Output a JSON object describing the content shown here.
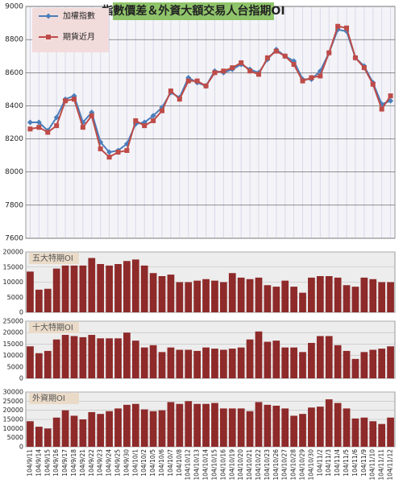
{
  "chart_data": [
    {
      "type": "line",
      "title": "指數價差＆外資大額交易人台指期OI",
      "ylim": [
        7600,
        9000
      ],
      "yticks": [
        7600,
        7800,
        8000,
        8200,
        8400,
        8600,
        8800,
        9000
      ],
      "grid": true,
      "legend": "top-left",
      "series": [
        {
          "name": "加權指數",
          "color": "#4a7ebb",
          "values": [
            8300,
            8300,
            8250,
            8330,
            8440,
            8460,
            8300,
            8360,
            8180,
            8120,
            8130,
            8170,
            8290,
            8300,
            8340,
            8390,
            8480,
            8450,
            8570,
            8540,
            8520,
            8610,
            8600,
            8620,
            8650,
            8620,
            8600,
            8680,
            8740,
            8700,
            8670,
            8560,
            8560,
            8610,
            8720,
            8860,
            8850,
            8690,
            8640,
            8540,
            8410,
            8430
          ]
        },
        {
          "name": "期貨近月",
          "color": "#be4b48",
          "values": [
            8260,
            8270,
            8240,
            8280,
            8430,
            8440,
            8270,
            8340,
            8140,
            8090,
            8120,
            8130,
            8310,
            8280,
            8310,
            8370,
            8490,
            8440,
            8550,
            8550,
            8520,
            8600,
            8610,
            8630,
            8660,
            8610,
            8590,
            8690,
            8730,
            8700,
            8650,
            8550,
            8570,
            8580,
            8720,
            8880,
            8870,
            8690,
            8630,
            8530,
            8380,
            8460
          ]
        }
      ]
    },
    {
      "type": "bar",
      "title": "五大特期OI",
      "color": "#8e2a2a",
      "ylim": [
        0,
        20000
      ],
      "yticks": [
        0,
        5000,
        10000,
        15000,
        20000
      ],
      "grid": true,
      "values": [
        13500,
        7500,
        7800,
        14500,
        15500,
        15500,
        15500,
        18000,
        16000,
        15500,
        16000,
        17000,
        17500,
        15500,
        13000,
        12000,
        12500,
        10000,
        10000,
        10500,
        11000,
        10500,
        10000,
        13000,
        11500,
        11000,
        11500,
        9000,
        8500,
        10500,
        8500,
        6500,
        11500,
        12000,
        12000,
        11500,
        9000,
        8500,
        11500,
        11000,
        10000,
        10000
      ]
    },
    {
      "type": "bar",
      "title": "十大特期OI",
      "color": "#8e2a2a",
      "ylim": [
        0,
        25000
      ],
      "yticks": [
        0,
        5000,
        10000,
        15000,
        20000,
        25000
      ],
      "grid": true,
      "values": [
        14000,
        11000,
        12000,
        17000,
        19000,
        18500,
        18000,
        19000,
        17500,
        17500,
        17500,
        20000,
        16500,
        13500,
        14500,
        11500,
        13500,
        12500,
        12500,
        12000,
        13500,
        13000,
        12500,
        13000,
        13500,
        17000,
        20500,
        16000,
        16500,
        13500,
        13500,
        11500,
        15500,
        18500,
        18500,
        14500,
        12000,
        8500,
        11500,
        12500,
        13000,
        14000
      ]
    },
    {
      "type": "bar",
      "title": "外資期OI",
      "color": "#8e2a2a",
      "ylim": [
        0,
        30000
      ],
      "yticks": [
        0,
        5000,
        10000,
        15000,
        20000,
        25000,
        30000
      ],
      "grid": true,
      "categories": [
        "104/9/11",
        "104/9/14",
        "104/9/15",
        "104/9/16",
        "104/9/17",
        "104/9/18",
        "104/9/21",
        "104/9/22",
        "104/9/23",
        "104/9/24",
        "104/9/25",
        "104/9/30",
        "104/10/1",
        "104/10/2",
        "104/10/5",
        "104/10/6",
        "104/10/7",
        "104/10/8",
        "104/10/12",
        "104/10/13",
        "104/10/14",
        "104/10/15",
        "104/10/16",
        "104/10/19",
        "104/10/20",
        "104/10/21",
        "104/10/22",
        "104/10/23",
        "104/10/26",
        "104/10/27",
        "104/10/28",
        "104/10/29",
        "104/10/30",
        "104/11/2",
        "104/11/3",
        "104/11/4",
        "104/11/5",
        "104/11/6",
        "104/11/9",
        "104/11/10",
        "104/11/11",
        "104/11/12"
      ],
      "values": [
        14000,
        11000,
        10000,
        16000,
        20000,
        17000,
        15000,
        19000,
        18000,
        19500,
        21000,
        23000,
        23500,
        20500,
        19500,
        20000,
        24500,
        23500,
        25000,
        23500,
        23500,
        24000,
        21000,
        21000,
        21000,
        19500,
        24500,
        23000,
        22500,
        21000,
        17000,
        18000,
        21500,
        22000,
        26000,
        24000,
        21000,
        15500,
        16000,
        14000,
        12500,
        16000
      ]
    }
  ]
}
